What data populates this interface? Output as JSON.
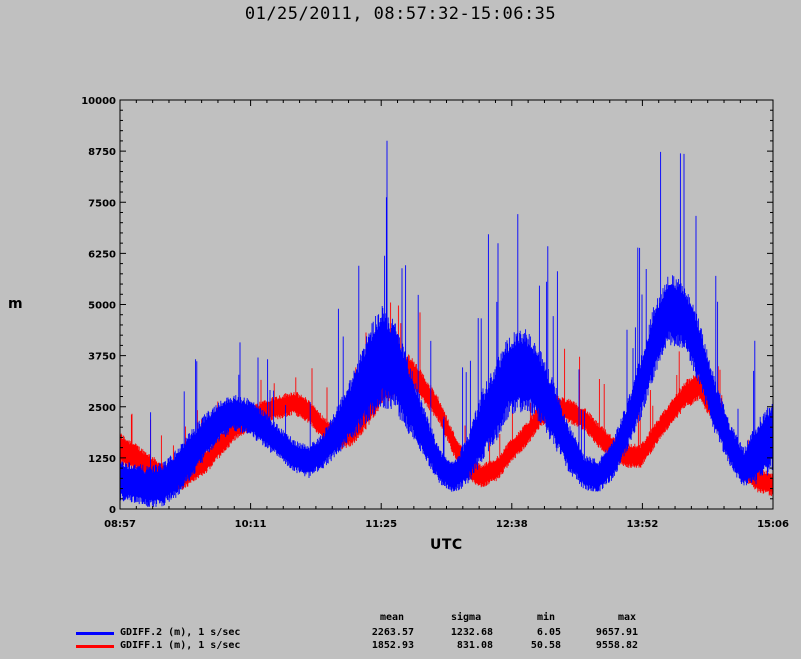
{
  "chart_data": {
    "type": "line",
    "title": "01/25/2011, 08:57:32-15:06:35",
    "xlabel": "UTC",
    "ylabel": "m",
    "x_tick_labels": [
      "08:57",
      "10:11",
      "11:25",
      "12:38",
      "13:52",
      "15:06"
    ],
    "y_tick_labels": [
      "0",
      "1250",
      "2500",
      "3750",
      "5000",
      "6250",
      "7500",
      "8750",
      "10000"
    ],
    "xlim": [
      "08:57:32",
      "15:06:35"
    ],
    "ylim": [
      0,
      10000
    ],
    "series": [
      {
        "name": "GDIFF.2 (m), 1 s/sec",
        "color": "#0000ff",
        "stats": {
          "mean": "2263.57",
          "sigma": "1232.68",
          "min": "6.05",
          "max": "9657.91"
        },
        "x": [
          "08:57",
          "09:05",
          "09:13",
          "09:22",
          "09:30",
          "09:38",
          "09:47",
          "09:55",
          "10:03",
          "10:11",
          "10:19",
          "10:28",
          "10:36",
          "10:44",
          "10:52",
          "11:00",
          "11:09",
          "11:17",
          "11:25",
          "11:33",
          "11:41",
          "11:50",
          "11:58",
          "12:06",
          "12:14",
          "12:22",
          "12:31",
          "12:38",
          "12:47",
          "12:55",
          "13:03",
          "13:11",
          "13:20",
          "13:28",
          "13:36",
          "13:44",
          "13:52",
          "14:00",
          "14:08",
          "14:17",
          "14:25",
          "14:33",
          "14:42",
          "14:50",
          "14:58",
          "15:06"
        ],
        "center": [
          700,
          650,
          550,
          600,
          900,
          1350,
          1850,
          2200,
          2350,
          2250,
          1950,
          1600,
          1300,
          1150,
          1400,
          1900,
          2500,
          3200,
          3750,
          3500,
          2700,
          1800,
          1050,
          750,
          1200,
          2000,
          2700,
          3300,
          3400,
          3000,
          2300,
          1500,
          900,
          800,
          1200,
          2000,
          3000,
          4200,
          4900,
          4700,
          3800,
          2600,
          1600,
          1000,
          1400,
          1800
        ],
        "halfwidth": [
          500,
          500,
          500,
          550,
          600,
          600,
          550,
          500,
          450,
          450,
          450,
          400,
          400,
          400,
          450,
          600,
          800,
          1100,
          1300,
          1100,
          900,
          600,
          450,
          400,
          600,
          900,
          1000,
          1000,
          1000,
          900,
          800,
          600,
          450,
          400,
          500,
          600,
          800,
          900,
          900,
          800,
          800,
          700,
          550,
          500,
          800,
          900
        ]
      },
      {
        "name": "GDIFF.1 (m), 1 s/sec",
        "color": "#ff0000",
        "stats": {
          "mean": "1852.93",
          "sigma": "831.08",
          "min": "50.58",
          "max": "9558.82"
        },
        "x": [
          "08:57",
          "09:05",
          "09:13",
          "09:22",
          "09:30",
          "09:38",
          "09:47",
          "09:55",
          "10:03",
          "10:11",
          "10:19",
          "10:28",
          "10:36",
          "10:44",
          "10:52",
          "11:00",
          "11:09",
          "11:17",
          "11:25",
          "11:33",
          "11:41",
          "11:50",
          "11:58",
          "12:06",
          "12:14",
          "12:22",
          "12:31",
          "12:38",
          "12:47",
          "12:55",
          "13:03",
          "13:11",
          "13:20",
          "13:28",
          "13:36",
          "13:44",
          "13:52",
          "14:00",
          "14:08",
          "14:17",
          "14:25",
          "14:33",
          "14:42",
          "14:50",
          "14:58",
          "15:06"
        ],
        "center": [
          1500,
          1300,
          1100,
          800,
          700,
          900,
          1200,
          1600,
          2000,
          2200,
          2400,
          2500,
          2600,
          2400,
          2000,
          1700,
          1900,
          2400,
          3000,
          3200,
          3400,
          2900,
          2400,
          1600,
          1000,
          800,
          1000,
          1400,
          1800,
          2300,
          2500,
          2400,
          2200,
          1800,
          1500,
          1300,
          1300,
          1800,
          2300,
          2800,
          3000,
          2400,
          1500,
          1000,
          700,
          600
        ],
        "halfwidth": [
          400,
          350,
          300,
          300,
          300,
          300,
          300,
          300,
          300,
          300,
          300,
          300,
          300,
          300,
          300,
          300,
          350,
          450,
          500,
          450,
          400,
          350,
          300,
          300,
          300,
          300,
          300,
          300,
          300,
          300,
          300,
          300,
          300,
          300,
          300,
          300,
          300,
          300,
          300,
          350,
          350,
          300,
          300,
          300,
          300,
          300
        ]
      }
    ],
    "legend_headers": {
      "mean": "mean",
      "sigma": "sigma",
      "min": "min",
      "max": "max"
    }
  }
}
